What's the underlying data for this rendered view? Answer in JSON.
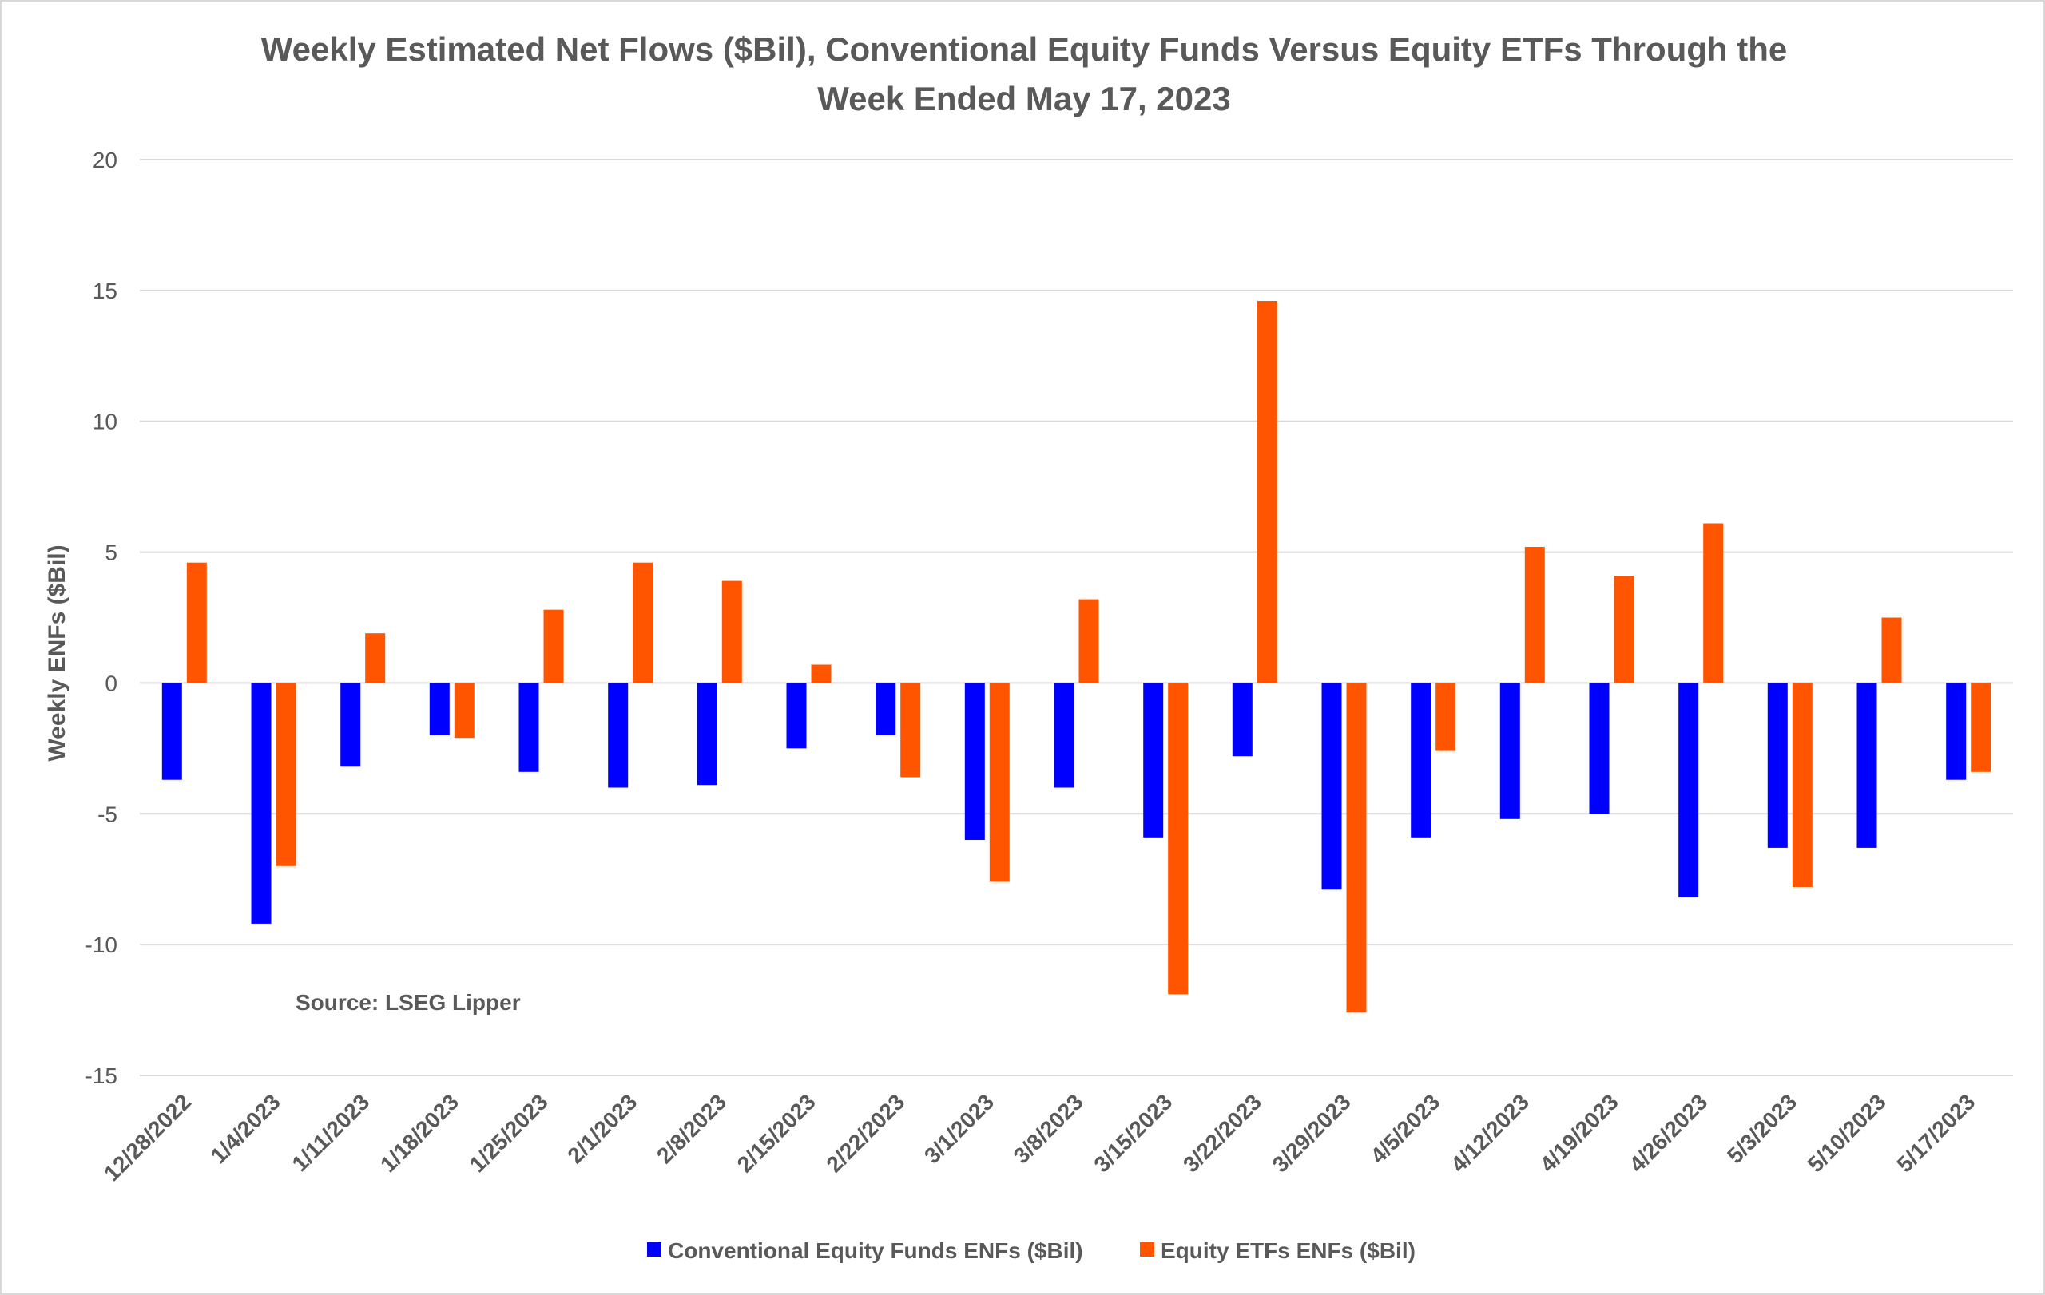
{
  "chart_data": {
    "type": "bar",
    "title": "Weekly Estimated Net Flows ($Bil), Conventional Equity Funds Versus Equity ETFs Through the Week Ended May 17, 2023",
    "title_lines": [
      "Weekly Estimated Net Flows ($Bil), Conventional Equity Funds Versus Equity ETFs Through the",
      "Week Ended May 17, 2023"
    ],
    "xlabel": "",
    "ylabel": "Weekly ENFs ($Bil)",
    "ylim": [
      -15,
      20
    ],
    "yticks": [
      -15,
      -10,
      -5,
      0,
      5,
      10,
      15,
      20
    ],
    "grid": true,
    "legend_position": "bottom",
    "annotation": "Source: LSEG Lipper",
    "categories": [
      "12/28/2022",
      "1/4/2023",
      "1/11/2023",
      "1/18/2023",
      "1/25/2023",
      "2/1/2023",
      "2/8/2023",
      "2/15/2023",
      "2/22/2023",
      "3/1/2023",
      "3/8/2023",
      "3/15/2023",
      "3/22/2023",
      "3/29/2023",
      "4/5/2023",
      "4/12/2023",
      "4/19/2023",
      "4/26/2023",
      "5/3/2023",
      "5/10/2023",
      "5/17/2023"
    ],
    "series": [
      {
        "name": "Conventional Equity Funds ENFs ($Bil)",
        "color": "#0000ff",
        "values": [
          -3.7,
          -9.2,
          -3.2,
          -2.0,
          -3.4,
          -4.0,
          -3.9,
          -2.5,
          -2.0,
          -6.0,
          -4.0,
          -5.9,
          -2.8,
          -7.9,
          -5.9,
          -5.2,
          -5.0,
          -8.2,
          -6.3,
          -6.3,
          -3.7
        ]
      },
      {
        "name": "Equity ETFs ENFs ($Bil)",
        "color": "#ff5500",
        "values": [
          4.6,
          -7.0,
          1.9,
          -2.1,
          2.8,
          4.6,
          3.9,
          0.7,
          -3.6,
          -7.6,
          3.2,
          -11.9,
          14.6,
          -12.6,
          -2.6,
          5.2,
          4.1,
          6.1,
          -7.8,
          2.5,
          -3.4
        ]
      }
    ]
  }
}
